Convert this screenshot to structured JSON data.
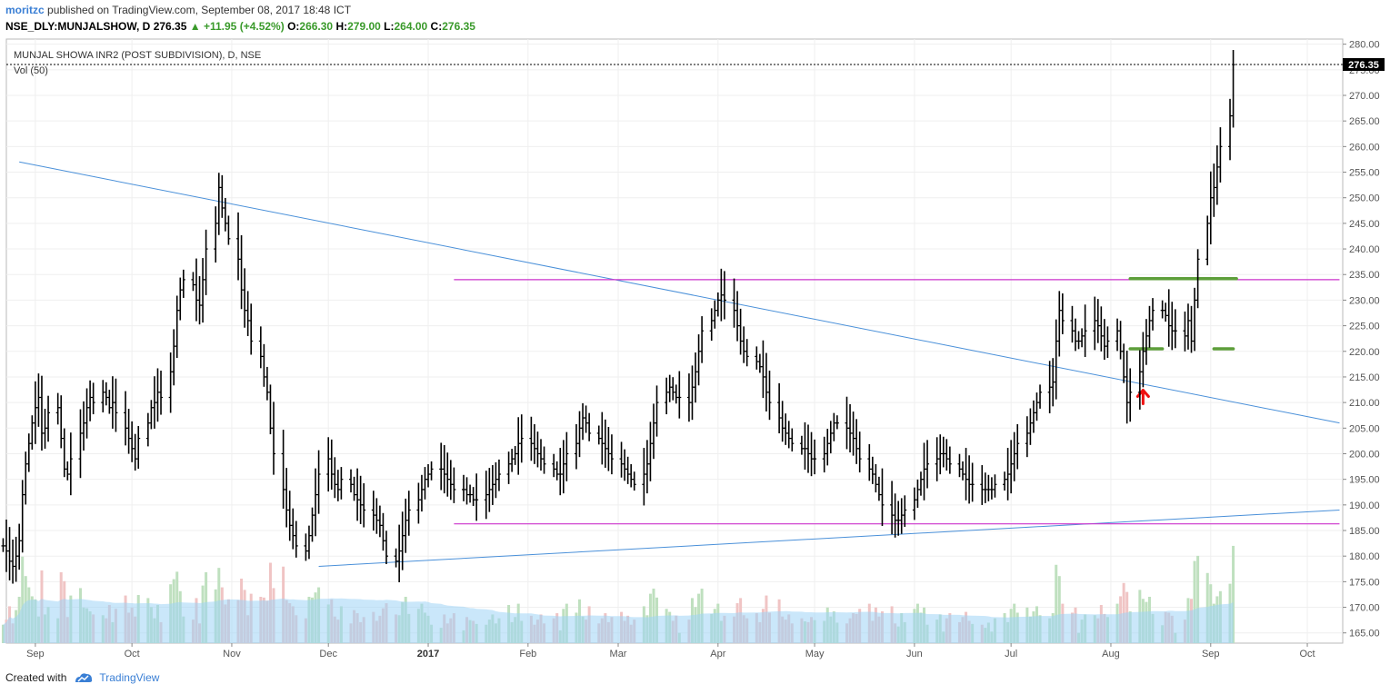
{
  "header": {
    "author": "moritzc",
    "published": "published on TradingView.com, September 08, 2017 18:48 ICT",
    "symbol_line": "NSE_DLY:MUNJALSHOW, D",
    "last": "276.35",
    "change": "+11.95 (+4.52%)",
    "o_label": "O:",
    "o_value": "266.30",
    "h_label": "H:",
    "h_value": "279.00",
    "l_label": "L:",
    "l_value": "264.00",
    "c_label": "C:",
    "c_value": "276.35"
  },
  "pane": {
    "title": "MUNJAL SHOWA INR2 (POST SUBDIVISION), D, NSE",
    "volume_label": "Vol (50)",
    "price_badge": "276.35"
  },
  "footer": {
    "created_with": "Created with",
    "brand": "TradingView"
  },
  "colors": {
    "bar": "#000000",
    "trendline": "#4a90d9",
    "level": "#cc33cc",
    "marker": "#5d9e3a",
    "arrow": "#ee1111",
    "vol_up": "#bfe0bf",
    "vol_down": "#f0c4c4",
    "vol_ma": "#9fd3f5"
  },
  "chart_data": {
    "type": "ohlc",
    "y_range": [
      163,
      281
    ],
    "y_ticks": [
      "280.00",
      "275.00",
      "270.00",
      "265.00",
      "260.00",
      "255.00",
      "250.00",
      "245.00",
      "240.00",
      "235.00",
      "230.00",
      "225.00",
      "220.00",
      "215.00",
      "210.00",
      "205.00",
      "200.00",
      "195.00",
      "190.00",
      "185.00",
      "180.00",
      "175.00",
      "170.00",
      "165.00"
    ],
    "x_labels": [
      {
        "label": "Sep",
        "day": 0
      },
      {
        "label": "Oct",
        "day": 30
      },
      {
        "label": "Nov",
        "day": 61
      },
      {
        "label": "Dec",
        "day": 91
      },
      {
        "label": "2017",
        "day": 122,
        "bold": true
      },
      {
        "label": "Feb",
        "day": 153
      },
      {
        "label": "Mar",
        "day": 181
      },
      {
        "label": "Apr",
        "day": 212
      },
      {
        "label": "May",
        "day": 242
      },
      {
        "label": "Jun",
        "day": 273
      },
      {
        "label": "Jul",
        "day": 303
      },
      {
        "label": "Aug",
        "day": 334
      },
      {
        "label": "Sep",
        "day": 365
      },
      {
        "label": "Oct",
        "day": 395
      }
    ],
    "day_range": [
      -9,
      406
    ],
    "closes": [
      182,
      181,
      179,
      178,
      180,
      183,
      192,
      198,
      202,
      206,
      209,
      211,
      204,
      205,
      208,
      209,
      203,
      197,
      196,
      199,
      204,
      206,
      209,
      211,
      210,
      212,
      211,
      209,
      210,
      208,
      205,
      203,
      201,
      199,
      203,
      206,
      209,
      210,
      212,
      211,
      216,
      221,
      228,
      232,
      234,
      233,
      230,
      229,
      234,
      240,
      245,
      252,
      248,
      245,
      242,
      238,
      232,
      228,
      226,
      222,
      219,
      215,
      212,
      205,
      200,
      193,
      189,
      186,
      184,
      182,
      181,
      184,
      188,
      192,
      196,
      199,
      196,
      194,
      193,
      195,
      194,
      192,
      191,
      190,
      189,
      188,
      187,
      186,
      183,
      180,
      179,
      181,
      184,
      187,
      189,
      191,
      193,
      195,
      196,
      197,
      197,
      196,
      195,
      194,
      193,
      193,
      192,
      192,
      191,
      191,
      192,
      193,
      194,
      195,
      196,
      198,
      199,
      200,
      202,
      203,
      202,
      201,
      200,
      199,
      198,
      197,
      196,
      196,
      198,
      200,
      202,
      205,
      207,
      206,
      204,
      203,
      202,
      201,
      200,
      199,
      198,
      197,
      196,
      195,
      194,
      196,
      198,
      202,
      206,
      210,
      212,
      213,
      212,
      211,
      211,
      210,
      213,
      216,
      220,
      224,
      226,
      228,
      230,
      231,
      230,
      228,
      225,
      222,
      220,
      219,
      218,
      217,
      215,
      212,
      210,
      207,
      205,
      204,
      203,
      202,
      201,
      201,
      200,
      199,
      199,
      200,
      202,
      204,
      206,
      206,
      205,
      204,
      203,
      201,
      199,
      197,
      196,
      194,
      192,
      190,
      188,
      187,
      187,
      188,
      189,
      191,
      193,
      195,
      197,
      198,
      199,
      200,
      200,
      199,
      198,
      197,
      196,
      195,
      194,
      194,
      193,
      193,
      193,
      193,
      194,
      195,
      196,
      198,
      200,
      202,
      204,
      206,
      208,
      210,
      212,
      213,
      214,
      222,
      228,
      226,
      224,
      222,
      222,
      223,
      224,
      226,
      225,
      223,
      221,
      222,
      224,
      220,
      215,
      210,
      212,
      216,
      220,
      223,
      226,
      228,
      228,
      227,
      225,
      224,
      224,
      223,
      226,
      222,
      230,
      238,
      245,
      250,
      252,
      256,
      260,
      266,
      276
    ],
    "anchor_date_day_of_last": 372,
    "trendlines": [
      {
        "name": "descending",
        "x1": -5,
        "y1": 257,
        "x2": 405,
        "y2": 206
      },
      {
        "name": "ascending",
        "x1": 88,
        "y1": 178,
        "x2": 405,
        "y2": 189
      }
    ],
    "levels": [
      {
        "y": 234,
        "x1": 130,
        "x2": 405
      },
      {
        "y": 186.3,
        "x1": 130,
        "x2": 405
      }
    ],
    "markers": [
      {
        "y": 234.2,
        "x1": 340,
        "x2": 373
      },
      {
        "y": 220.5,
        "x1": 340,
        "x2": 350
      },
      {
        "y": 220.5,
        "x1": 366,
        "x2": 372
      }
    ],
    "arrow": {
      "day": 344,
      "y": 211
    }
  }
}
